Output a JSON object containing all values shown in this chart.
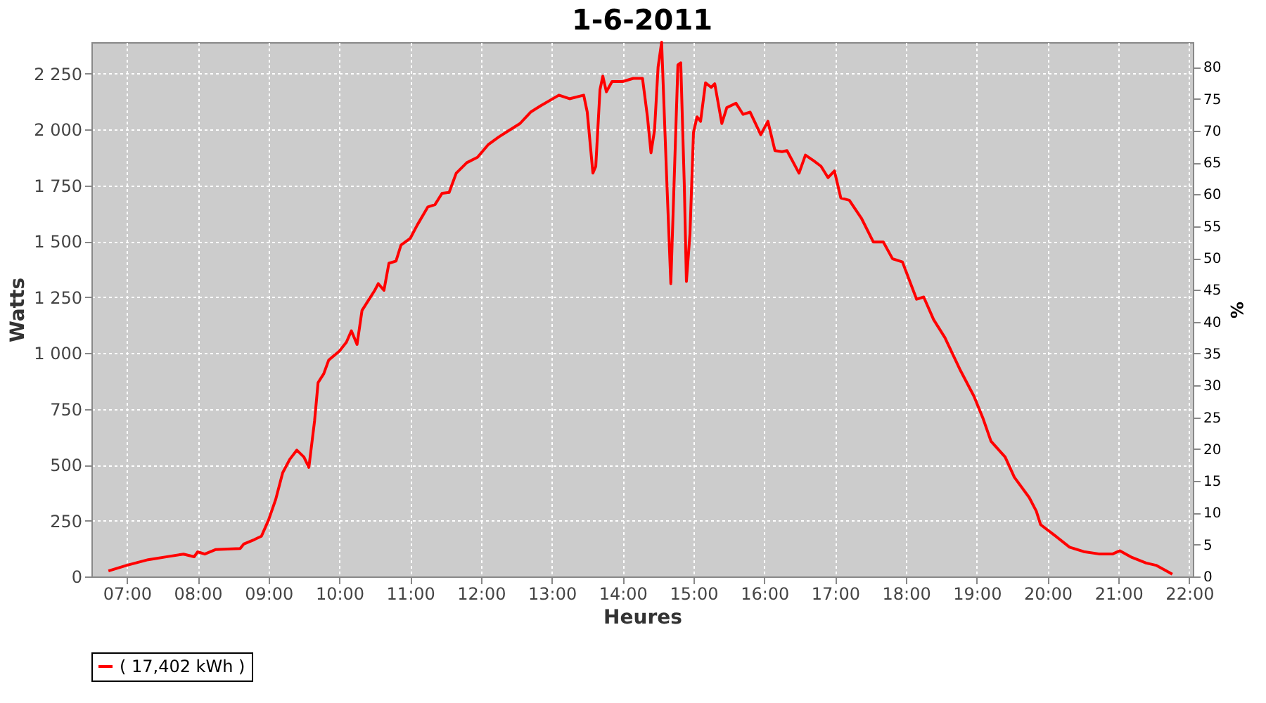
{
  "chart_data": {
    "type": "line",
    "title": "1-6-2011",
    "xlabel": "Heures",
    "ylabel": "Watts",
    "y2label": "%",
    "xlim": [
      6.5,
      22.05
    ],
    "xticks": [
      {
        "value": 7,
        "label": "07:00"
      },
      {
        "value": 8,
        "label": "08:00"
      },
      {
        "value": 9,
        "label": "09:00"
      },
      {
        "value": 10,
        "label": "10:00"
      },
      {
        "value": 11,
        "label": "11:00"
      },
      {
        "value": 12,
        "label": "12:00"
      },
      {
        "value": 13,
        "label": "13:00"
      },
      {
        "value": 14,
        "label": "14:00"
      },
      {
        "value": 15,
        "label": "15:00"
      },
      {
        "value": 16,
        "label": "16:00"
      },
      {
        "value": 17,
        "label": "17:00"
      },
      {
        "value": 18,
        "label": "18:00"
      },
      {
        "value": 19,
        "label": "19:00"
      },
      {
        "value": 20,
        "label": "20:00"
      },
      {
        "value": 21,
        "label": "21:00"
      },
      {
        "value": 22,
        "label": "22:00"
      }
    ],
    "ylim": [
      0,
      2390
    ],
    "yticks": [
      0,
      250,
      500,
      750,
      {
        "value": 1000,
        "label": "1 000"
      },
      {
        "value": 1250,
        "label": "1 250"
      },
      {
        "value": 1500,
        "label": "1 500"
      },
      {
        "value": 1750,
        "label": "1 750"
      },
      {
        "value": 2000,
        "label": "2 000"
      },
      {
        "value": 2250,
        "label": "2 250"
      }
    ],
    "y2lim": [
      0,
      83.9
    ],
    "y2ticks": [
      0,
      5,
      10,
      15,
      20,
      25,
      30,
      35,
      40,
      45,
      50,
      55,
      60,
      65,
      70,
      75,
      80
    ],
    "grid": true,
    "legend": "bottom",
    "marker": "none",
    "line_style": "solid",
    "series": [
      {
        "name": "( 17,402 kWh )",
        "color": "#ff0000",
        "x": [
          6.74,
          7.0,
          7.3,
          7.6,
          7.8,
          7.95,
          8.0,
          8.1,
          8.25,
          8.6,
          8.65,
          8.8,
          8.9,
          9.0,
          9.1,
          9.2,
          9.3,
          9.4,
          9.5,
          9.57,
          9.65,
          9.7,
          9.78,
          9.85,
          10.0,
          10.1,
          10.17,
          10.25,
          10.32,
          10.4,
          10.5,
          10.55,
          10.63,
          10.7,
          10.8,
          10.87,
          11.0,
          11.1,
          11.25,
          11.35,
          11.45,
          11.55,
          11.65,
          11.8,
          11.95,
          12.1,
          12.25,
          12.4,
          12.55,
          12.7,
          12.85,
          13.1,
          13.25,
          13.45,
          13.5,
          13.58,
          13.62,
          13.68,
          13.72,
          13.77,
          13.85,
          14.0,
          14.15,
          14.28,
          14.35,
          14.4,
          14.45,
          14.5,
          14.55,
          14.62,
          14.68,
          14.75,
          14.78,
          14.82,
          14.87,
          14.9,
          14.95,
          15.0,
          15.05,
          15.1,
          15.17,
          15.25,
          15.3,
          15.4,
          15.47,
          15.6,
          15.7,
          15.8,
          15.95,
          16.05,
          16.15,
          16.25,
          16.32,
          16.49,
          16.58,
          16.7,
          16.8,
          16.9,
          16.99,
          17.08,
          17.2,
          17.37,
          17.54,
          17.68,
          17.81,
          17.95,
          18.15,
          18.25,
          18.39,
          18.55,
          18.76,
          18.96,
          19.09,
          19.2,
          19.4,
          19.53,
          19.74,
          19.84,
          19.9,
          20.11,
          20.31,
          20.51,
          20.72,
          20.92,
          21.02,
          21.19,
          21.39,
          21.53,
          21.76
        ],
        "values": [
          25,
          50,
          75,
          90,
          100,
          88,
          110,
          100,
          120,
          125,
          145,
          165,
          180,
          252,
          343,
          464,
          524,
          565,
          534,
          488,
          695,
          867,
          907,
          968,
          1008,
          1048,
          1099,
          1038,
          1190,
          1230,
          1280,
          1310,
          1280,
          1401,
          1411,
          1482,
          1512,
          1572,
          1653,
          1663,
          1714,
          1718,
          1804,
          1851,
          1875,
          1931,
          1966,
          1996,
          2026,
          2077,
          2107,
          2153,
          2137,
          2153,
          2077,
          1804,
          1834,
          2178,
          2238,
          2168,
          2214,
          2214,
          2228,
          2228,
          2056,
          1895,
          1996,
          2278,
          2390,
          1794,
          1310,
          1996,
          2288,
          2298,
          1754,
          1320,
          1532,
          1986,
          2056,
          2036,
          2208,
          2188,
          2204,
          2026,
          2097,
          2117,
          2067,
          2077,
          1976,
          2036,
          1905,
          1900,
          1905,
          1804,
          1885,
          1859,
          1835,
          1784,
          1814,
          1693,
          1683,
          1603,
          1496,
          1496,
          1421,
          1407,
          1240,
          1250,
          1149,
          1068,
          927,
          806,
          705,
          605,
          534,
          444,
          353,
          292,
          232,
          181,
          131,
          111,
          101,
          101,
          115,
          85,
          60,
          50,
          10
        ]
      }
    ]
  }
}
